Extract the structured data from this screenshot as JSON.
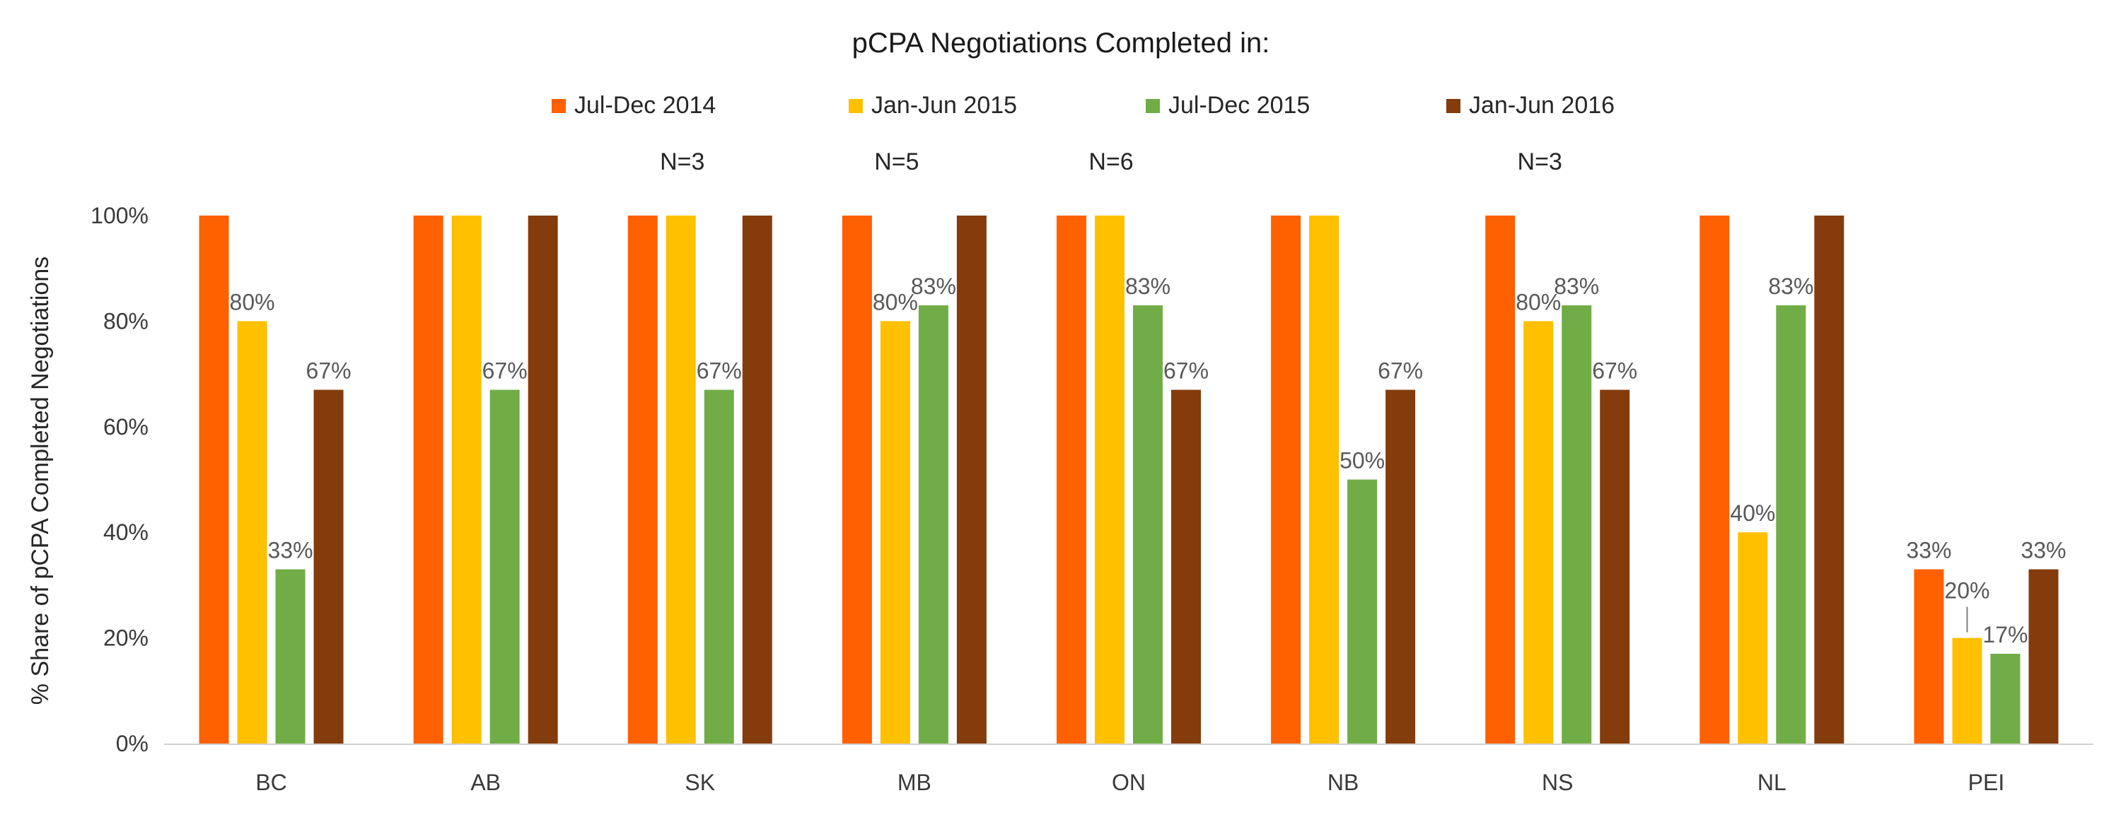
{
  "chart_data": {
    "type": "bar",
    "title": "pCPA Negotiations Completed in:",
    "ylabel": "% Share of pCPA Completed Negotiations",
    "xlabel": "",
    "ylim": [
      0,
      100
    ],
    "yticks": [
      0,
      20,
      40,
      60,
      80,
      100
    ],
    "ytick_labels": [
      "0%",
      "20%",
      "40%",
      "60%",
      "80%",
      "100%"
    ],
    "categories": [
      "BC",
      "AB",
      "SK",
      "MB",
      "ON",
      "NB",
      "NS",
      "NL",
      "PEI"
    ],
    "legend_position": "top",
    "series": [
      {
        "name": "Jul-Dec 2014",
        "color": "#ff6000",
        "values": [
          100,
          100,
          100,
          100,
          100,
          100,
          100,
          100,
          33
        ],
        "labels": [
          "",
          "",
          "",
          "",
          "",
          "",
          "",
          "",
          "33%"
        ]
      },
      {
        "name": "Jan-Jun 2015",
        "color": "#ffc000",
        "values": [
          80,
          100,
          100,
          80,
          100,
          100,
          80,
          40,
          20
        ],
        "labels": [
          "80%",
          "",
          "",
          "80%",
          "",
          "",
          "80%",
          "40%",
          "20%"
        ]
      },
      {
        "name": "Jul-Dec 2015",
        "color": "#70ad47",
        "values": [
          33,
          67,
          67,
          83,
          83,
          50,
          83,
          83,
          17
        ],
        "labels": [
          "33%",
          "67%",
          "67%",
          "83%",
          "83%",
          "50%",
          "83%",
          "83%",
          "17%"
        ]
      },
      {
        "name": "Jan-Jun 2016",
        "color": "#843c0c",
        "values": [
          67,
          100,
          100,
          100,
          67,
          67,
          67,
          100,
          33
        ],
        "labels": [
          "67%",
          "",
          "",
          "",
          "67%",
          "67%",
          "67%",
          "",
          "33%"
        ]
      }
    ],
    "annotations": [
      {
        "text": "N=3",
        "category": "SK"
      },
      {
        "text": "N=5",
        "category": "MB"
      },
      {
        "text": "N=6",
        "category": "ON"
      },
      {
        "text": "N=3",
        "category": "NS"
      }
    ]
  }
}
